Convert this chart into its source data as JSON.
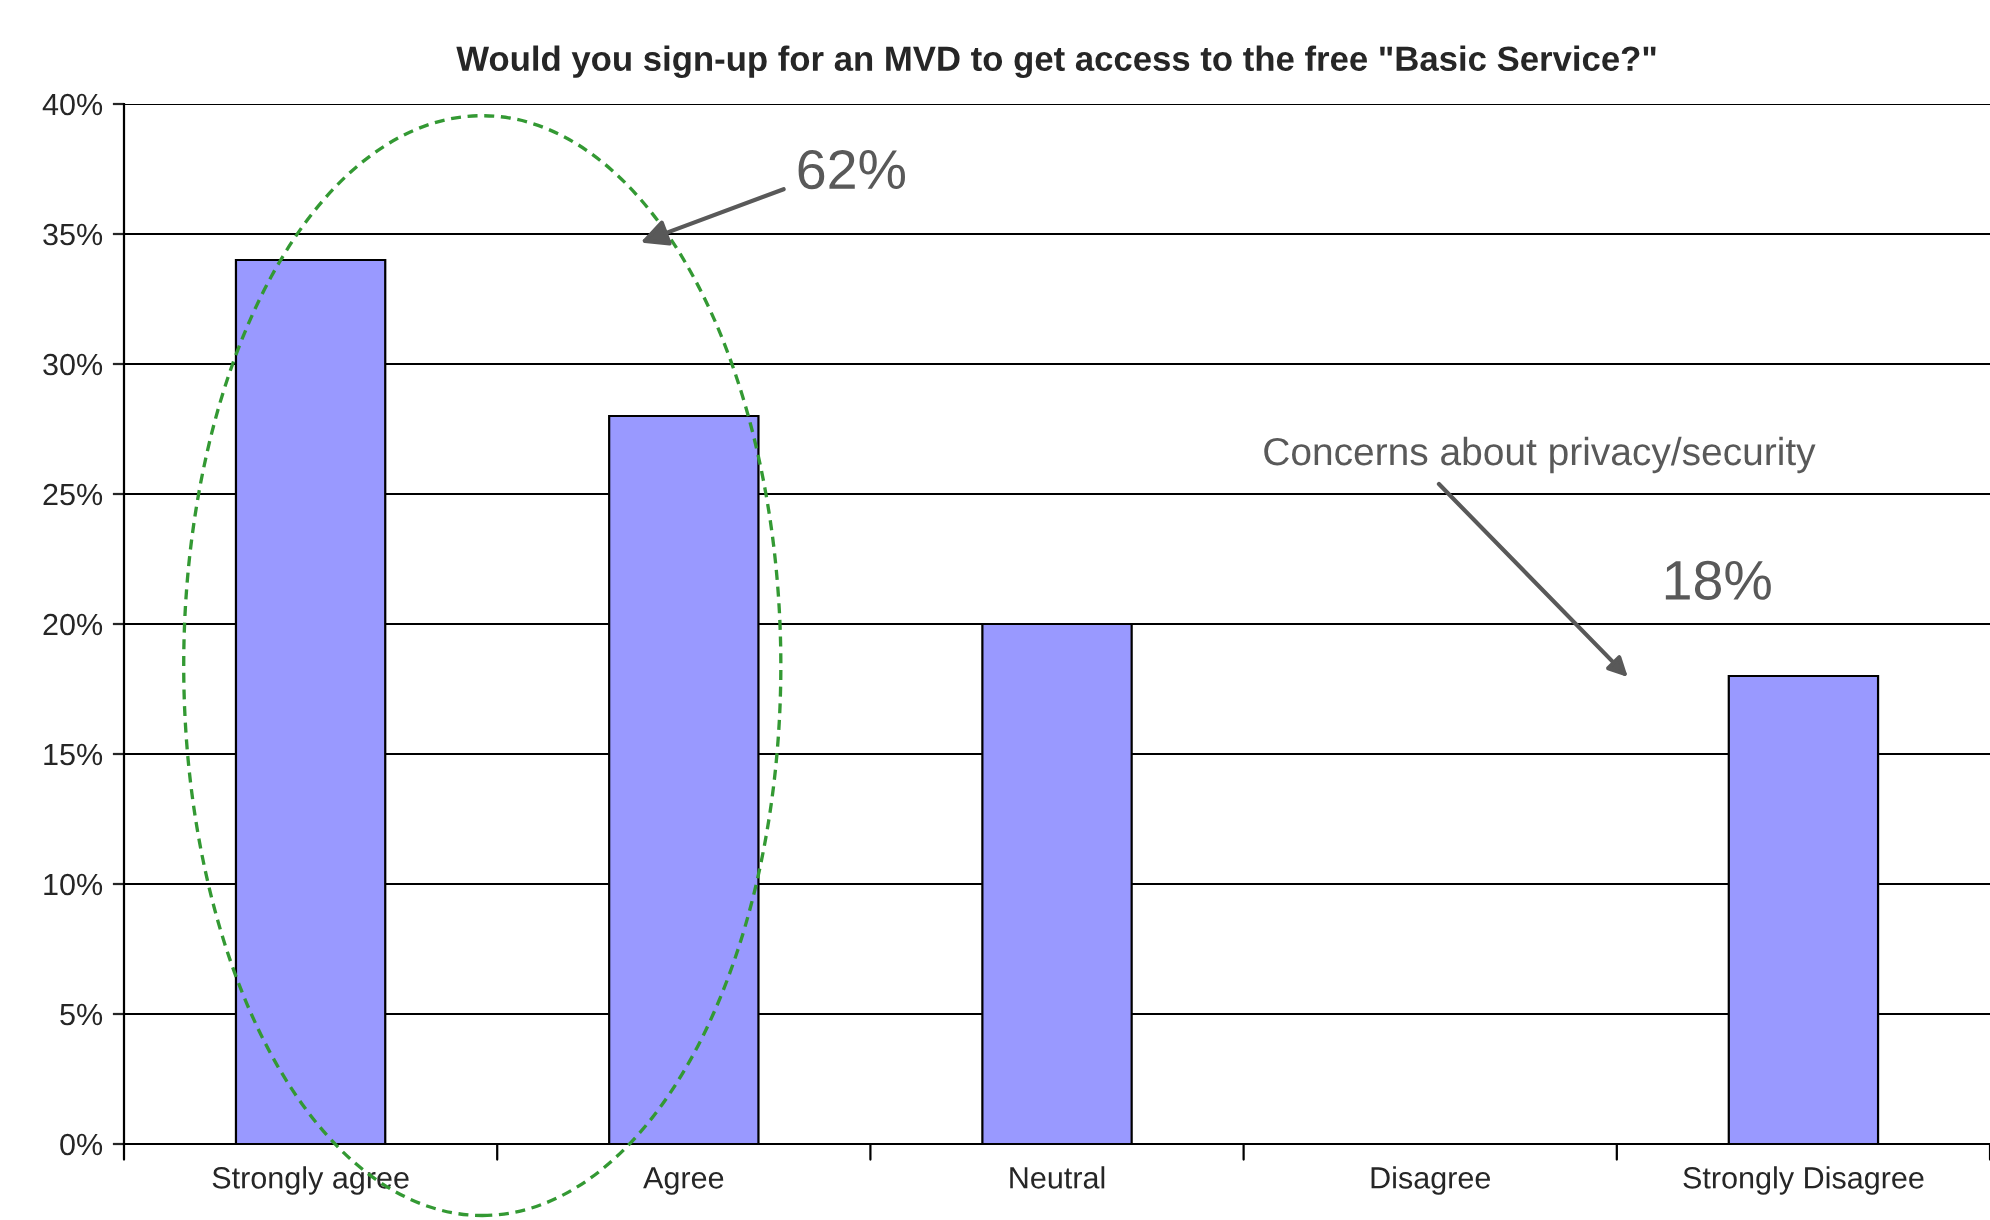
{
  "chart_data": {
    "type": "bar",
    "title": "Would you sign-up for an MVD to get access to the free \"Basic Service?\"",
    "categories": [
      "Strongly agree",
      "Agree",
      "Neutral",
      "Disagree",
      "Strongly Disagree"
    ],
    "values": [
      34,
      28,
      20,
      null,
      18
    ],
    "color": "#9999ff",
    "ylim": [
      0,
      40
    ],
    "yticks": [
      {
        "value": 0,
        "label": "0%"
      },
      {
        "value": 5,
        "label": "5%"
      },
      {
        "value": 10,
        "label": "10%"
      },
      {
        "value": 15,
        "label": "15%"
      },
      {
        "value": 20,
        "label": "20%"
      },
      {
        "value": 25,
        "label": "25%"
      },
      {
        "value": 30,
        "label": "30%"
      },
      {
        "value": 35,
        "label": "35%"
      },
      {
        "value": 40,
        "label": "40%"
      }
    ],
    "grid": "y",
    "annotations": [
      "62%",
      "Concerns about privacy/security",
      "18%"
    ]
  }
}
